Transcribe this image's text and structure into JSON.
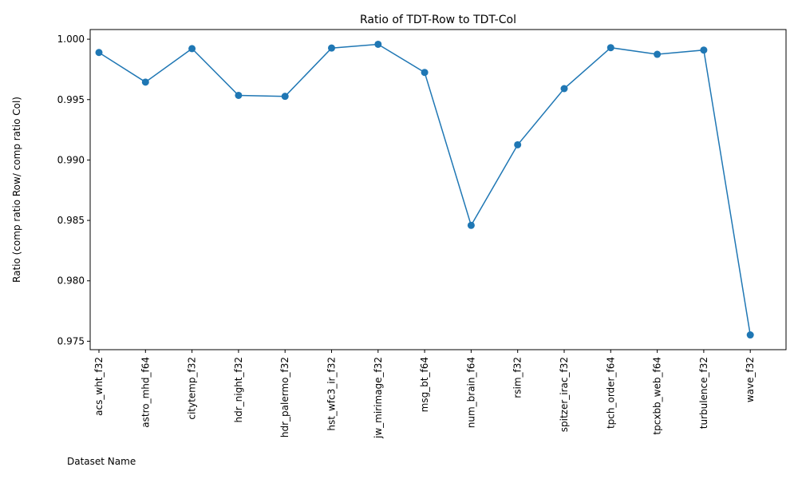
{
  "chart_data": {
    "type": "line",
    "title": "Ratio of TDT-Row to TDT-Col",
    "xlabel": "Dataset Name",
    "ylabel": "Ratio (comp ratio Row/ comp ratio Col)",
    "categories": [
      "acs_wht_f32",
      "astro_mhd_f64",
      "citytemp_f32",
      "hdr_night_f32",
      "hdr_palermo_f32",
      "hst_wfc3_ir_f32",
      "jw_mirimage_f32",
      "msg_bt_f64",
      "num_brain_f64",
      "rsim_f32",
      "spitzer_irac_f32",
      "tpch_order_f64",
      "tpcxbb_web_f64",
      "turbulence_f32",
      "wave_f32"
    ],
    "values": [
      0.9989,
      0.99645,
      0.99922,
      0.99535,
      0.99527,
      0.99927,
      0.99958,
      0.99725,
      0.98459,
      0.99126,
      0.99591,
      0.9993,
      0.99875,
      0.9991,
      0.97552
    ],
    "ylim": [
      0.9743,
      1.0008
    ],
    "yticks": [
      0.975,
      0.98,
      0.985,
      0.99,
      0.995,
      1.0
    ],
    "ytick_labels": [
      "0.975",
      "0.980",
      "0.985",
      "0.990",
      "0.995",
      "1.000"
    ],
    "grid": false,
    "line_color": "#1f77b4",
    "marker": "circle"
  }
}
